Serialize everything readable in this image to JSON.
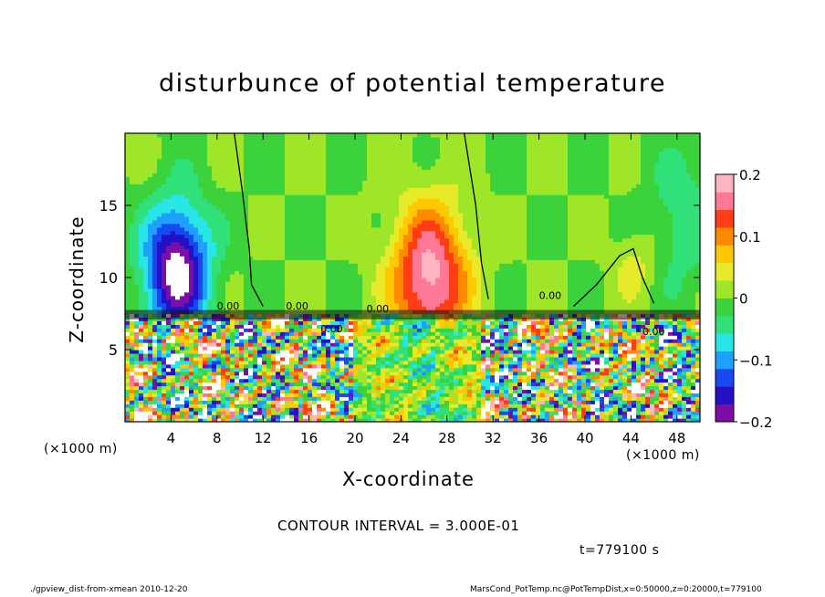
{
  "chart_data": {
    "type": "heatmap",
    "title": "disturbunce of potential temperature",
    "xlabel": "X-coordinate",
    "ylabel": "Z-coordinate",
    "x_unit": "(×1000 m)",
    "y_unit": "(×1000 m)",
    "xlim": [
      0,
      50
    ],
    "ylim": [
      0,
      20
    ],
    "x_ticks": [
      4,
      8,
      12,
      16,
      20,
      24,
      28,
      32,
      36,
      40,
      44,
      48
    ],
    "y_ticks": [
      5,
      10,
      15
    ],
    "colorbar": {
      "range": [
        -0.2,
        0.2
      ],
      "ticks": [
        {
          "value": 0.2,
          "label": "0.2"
        },
        {
          "value": 0.1,
          "label": "0.1"
        },
        {
          "value": 0,
          "label": "0"
        },
        {
          "value": -0.1,
          "label": "−0.1"
        },
        {
          "value": -0.2,
          "label": "−0.2"
        }
      ],
      "colors": [
        "#7b0fa5",
        "#2410c5",
        "#1848f0",
        "#1ea0ff",
        "#28e6e6",
        "#30e078",
        "#3cd23c",
        "#a0e628",
        "#e6ea28",
        "#ffc800",
        "#ff8a00",
        "#ff3c14",
        "#ff7896",
        "#ffb4c4"
      ]
    },
    "contour_annotations": [
      "0.00"
    ],
    "upper_field": [
      {
        "x": 4.5,
        "z": 10.5,
        "value": -0.22,
        "spread_x": 2.8,
        "spread_z": 4.5
      },
      {
        "x": 26.5,
        "z": 10.0,
        "value": 0.19,
        "spread_x": 3.2,
        "spread_z": 5.0
      },
      {
        "x": 44.5,
        "z": 11.0,
        "value": 0.04,
        "spread_x": 2.0,
        "spread_z": 2.5
      },
      {
        "x": 48.5,
        "z": 14.0,
        "value": -0.05,
        "spread_x": 3.0,
        "spread_z": 5.0
      }
    ]
  },
  "contour_interval": "CONTOUR INTERVAL = 3.000E-01",
  "time_label": "t=779100 s",
  "footer_left": "./gpview_dist-from-xmean  2010-12-20",
  "footer_right": "MarsCond_PotTemp.nc@PotTempDist,x=0:50000,z=0:20000,t=779100"
}
